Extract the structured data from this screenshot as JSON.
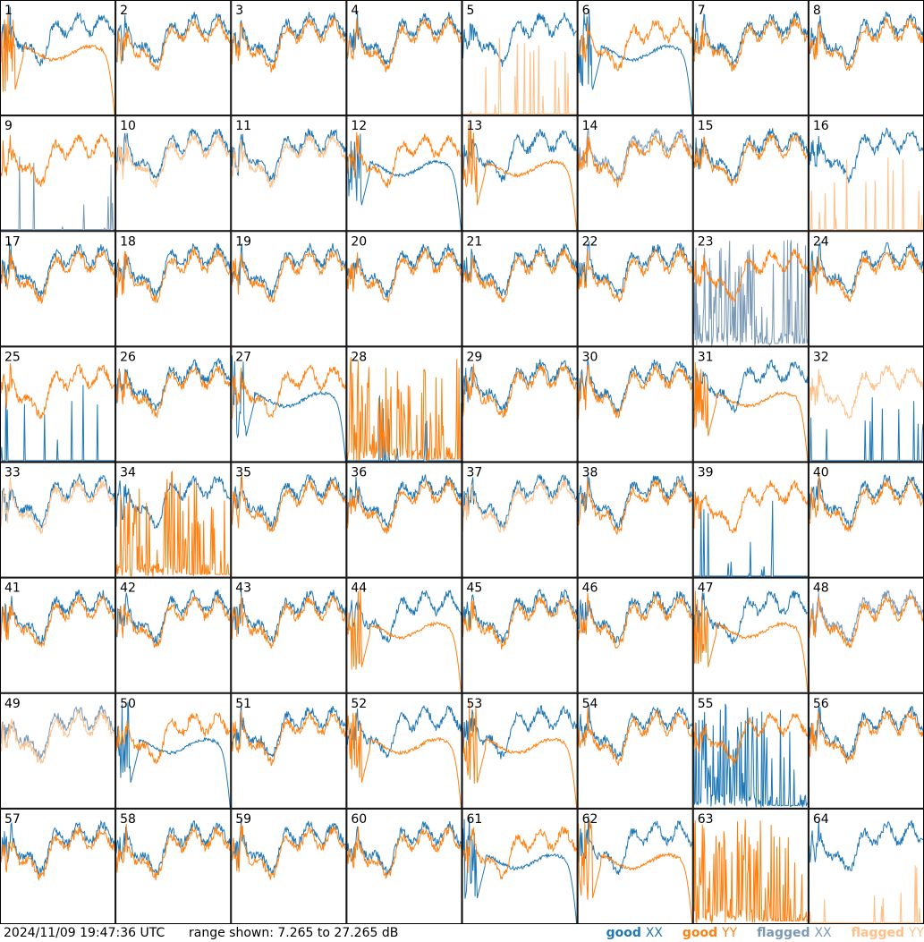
{
  "footer": {
    "timestamp": "2024/11/09 19:47:36 UTC",
    "range_text": "range shown: 7.265 to 27.265 dB"
  },
  "legend": [
    {
      "label": "good",
      "pol": "XX",
      "color": "#1f77b4"
    },
    {
      "label": "good",
      "pol": "YY",
      "color": "#ff7f0e"
    },
    {
      "label": "flagged",
      "pol": "XX",
      "color": "#7a99b6"
    },
    {
      "label": "flagged",
      "pol": "YY",
      "color": "#ffbf86"
    }
  ],
  "chart_data": {
    "type": "line",
    "grid": {
      "rows": 8,
      "cols": 8
    },
    "y_range_db": [
      7.265,
      27.265
    ],
    "colors": {
      "good_xx": "#1f77b4",
      "good_yy": "#ff7f0e",
      "flagged_xx": "#7a99b6",
      "flagged_yy": "#ffbf86"
    },
    "panels": [
      {
        "id": "1",
        "xx": {
          "s": "normal",
          "f": false
        },
        "yy": {
          "s": "rolloff",
          "f": false
        }
      },
      {
        "id": "2",
        "xx": {
          "s": "normal",
          "f": false
        },
        "yy": {
          "s": "normal",
          "f": false
        }
      },
      {
        "id": "3",
        "xx": {
          "s": "normal",
          "f": false
        },
        "yy": {
          "s": "normal",
          "f": false
        }
      },
      {
        "id": "4",
        "xx": {
          "s": "normal",
          "f": false
        },
        "yy": {
          "s": "normal",
          "f": false
        }
      },
      {
        "id": "5",
        "xx": {
          "s": "normal",
          "f": false
        },
        "yy": {
          "s": "spike",
          "f": true
        }
      },
      {
        "id": "6",
        "xx": {
          "s": "rolloff",
          "f": false
        },
        "yy": {
          "s": "normal",
          "f": false
        }
      },
      {
        "id": "7",
        "xx": {
          "s": "normal",
          "f": false
        },
        "yy": {
          "s": "normal",
          "f": false
        }
      },
      {
        "id": "8",
        "xx": {
          "s": "normal",
          "f": false
        },
        "yy": {
          "s": "normal",
          "f": false
        }
      },
      {
        "id": "9",
        "xx": {
          "s": "spike",
          "f": true
        },
        "yy": {
          "s": "normal",
          "f": false
        }
      },
      {
        "id": "10",
        "xx": {
          "s": "normal",
          "f": false
        },
        "yy": {
          "s": "normal",
          "f": true
        }
      },
      {
        "id": "11",
        "xx": {
          "s": "normal",
          "f": false
        },
        "yy": {
          "s": "normal",
          "f": true
        }
      },
      {
        "id": "12",
        "xx": {
          "s": "rolloff",
          "f": false
        },
        "yy": {
          "s": "normal",
          "f": false
        }
      },
      {
        "id": "13",
        "xx": {
          "s": "normal",
          "f": false
        },
        "yy": {
          "s": "rolloff",
          "f": false
        }
      },
      {
        "id": "14",
        "xx": {
          "s": "normal",
          "f": true
        },
        "yy": {
          "s": "normal",
          "f": false
        }
      },
      {
        "id": "15",
        "xx": {
          "s": "normal",
          "f": false
        },
        "yy": {
          "s": "normal",
          "f": false
        }
      },
      {
        "id": "16",
        "xx": {
          "s": "normal",
          "f": false
        },
        "yy": {
          "s": "spike",
          "f": true
        }
      },
      {
        "id": "17",
        "xx": {
          "s": "normal",
          "f": false
        },
        "yy": {
          "s": "normal",
          "f": false
        }
      },
      {
        "id": "18",
        "xx": {
          "s": "normal",
          "f": false
        },
        "yy": {
          "s": "normal",
          "f": false
        }
      },
      {
        "id": "19",
        "xx": {
          "s": "normal",
          "f": false
        },
        "yy": {
          "s": "normal",
          "f": false
        }
      },
      {
        "id": "20",
        "xx": {
          "s": "normal",
          "f": false
        },
        "yy": {
          "s": "normal",
          "f": false
        }
      },
      {
        "id": "21",
        "xx": {
          "s": "normal",
          "f": false
        },
        "yy": {
          "s": "normal",
          "f": false
        }
      },
      {
        "id": "22",
        "xx": {
          "s": "normal",
          "f": false
        },
        "yy": {
          "s": "normal",
          "f": false
        }
      },
      {
        "id": "23",
        "xx": {
          "s": "noise",
          "f": true
        },
        "yy": {
          "s": "normal",
          "f": false
        }
      },
      {
        "id": "24",
        "xx": {
          "s": "normal",
          "f": false
        },
        "yy": {
          "s": "normal",
          "f": false
        }
      },
      {
        "id": "25",
        "xx": {
          "s": "spike",
          "f": false
        },
        "yy": {
          "s": "normal",
          "f": false
        }
      },
      {
        "id": "26",
        "xx": {
          "s": "normal",
          "f": false
        },
        "yy": {
          "s": "normal",
          "f": false
        }
      },
      {
        "id": "27",
        "xx": {
          "s": "rolloff",
          "f": false
        },
        "yy": {
          "s": "normal",
          "f": false
        }
      },
      {
        "id": "28",
        "xx": {
          "s": "spike",
          "f": false
        },
        "yy": {
          "s": "noise",
          "f": false
        }
      },
      {
        "id": "29",
        "xx": {
          "s": "normal",
          "f": false
        },
        "yy": {
          "s": "normal",
          "f": false
        }
      },
      {
        "id": "30",
        "xx": {
          "s": "normal",
          "f": false
        },
        "yy": {
          "s": "normal",
          "f": false
        }
      },
      {
        "id": "31",
        "xx": {
          "s": "normal",
          "f": false
        },
        "yy": {
          "s": "rolloff",
          "f": false
        }
      },
      {
        "id": "32",
        "xx": {
          "s": "spike",
          "f": false
        },
        "yy": {
          "s": "normal",
          "f": true
        }
      },
      {
        "id": "33",
        "xx": {
          "s": "normal",
          "f": false
        },
        "yy": {
          "s": "normal",
          "f": true
        }
      },
      {
        "id": "34",
        "xx": {
          "s": "normal",
          "f": false
        },
        "yy": {
          "s": "noise",
          "f": false
        }
      },
      {
        "id": "35",
        "xx": {
          "s": "normal",
          "f": false
        },
        "yy": {
          "s": "normal",
          "f": false
        }
      },
      {
        "id": "36",
        "xx": {
          "s": "normal",
          "f": false
        },
        "yy": {
          "s": "normal",
          "f": false
        }
      },
      {
        "id": "37",
        "xx": {
          "s": "normal",
          "f": false
        },
        "yy": {
          "s": "normal",
          "f": true
        }
      },
      {
        "id": "38",
        "xx": {
          "s": "normal",
          "f": false
        },
        "yy": {
          "s": "normal",
          "f": false
        }
      },
      {
        "id": "39",
        "xx": {
          "s": "spike",
          "f": false
        },
        "yy": {
          "s": "normal",
          "f": false
        }
      },
      {
        "id": "40",
        "xx": {
          "s": "normal",
          "f": false
        },
        "yy": {
          "s": "normal",
          "f": false
        }
      },
      {
        "id": "41",
        "xx": {
          "s": "normal",
          "f": false
        },
        "yy": {
          "s": "normal",
          "f": false
        }
      },
      {
        "id": "42",
        "xx": {
          "s": "normal",
          "f": false
        },
        "yy": {
          "s": "normal",
          "f": false
        }
      },
      {
        "id": "43",
        "xx": {
          "s": "normal",
          "f": false
        },
        "yy": {
          "s": "normal",
          "f": false
        }
      },
      {
        "id": "44",
        "xx": {
          "s": "normal",
          "f": false
        },
        "yy": {
          "s": "rolloff",
          "f": false
        }
      },
      {
        "id": "45",
        "xx": {
          "s": "normal",
          "f": false
        },
        "yy": {
          "s": "normal",
          "f": false
        }
      },
      {
        "id": "46",
        "xx": {
          "s": "normal",
          "f": false
        },
        "yy": {
          "s": "normal",
          "f": false
        }
      },
      {
        "id": "47",
        "xx": {
          "s": "normal",
          "f": false
        },
        "yy": {
          "s": "rolloff",
          "f": false
        }
      },
      {
        "id": "48",
        "xx": {
          "s": "normal",
          "f": true
        },
        "yy": {
          "s": "normal",
          "f": false
        }
      },
      {
        "id": "49",
        "xx": {
          "s": "normal",
          "f": true
        },
        "yy": {
          "s": "normal",
          "f": true
        }
      },
      {
        "id": "50",
        "xx": {
          "s": "rolloff",
          "f": false
        },
        "yy": {
          "s": "normal",
          "f": false
        }
      },
      {
        "id": "51",
        "xx": {
          "s": "normal",
          "f": false
        },
        "yy": {
          "s": "normal",
          "f": false
        }
      },
      {
        "id": "52",
        "xx": {
          "s": "normal",
          "f": false
        },
        "yy": {
          "s": "rolloff",
          "f": false
        }
      },
      {
        "id": "53",
        "xx": {
          "s": "normal",
          "f": false
        },
        "yy": {
          "s": "rolloff",
          "f": false
        }
      },
      {
        "id": "54",
        "xx": {
          "s": "normal",
          "f": false
        },
        "yy": {
          "s": "normal",
          "f": false
        }
      },
      {
        "id": "55",
        "xx": {
          "s": "noise",
          "f": false
        },
        "yy": {
          "s": "normal",
          "f": false
        }
      },
      {
        "id": "56",
        "xx": {
          "s": "normal",
          "f": false
        },
        "yy": {
          "s": "normal",
          "f": false
        }
      },
      {
        "id": "57",
        "xx": {
          "s": "normal",
          "f": false
        },
        "yy": {
          "s": "normal",
          "f": false
        }
      },
      {
        "id": "58",
        "xx": {
          "s": "normal",
          "f": false
        },
        "yy": {
          "s": "normal",
          "f": false
        }
      },
      {
        "id": "59",
        "xx": {
          "s": "normal",
          "f": false
        },
        "yy": {
          "s": "normal",
          "f": false
        }
      },
      {
        "id": "60",
        "xx": {
          "s": "normal",
          "f": false
        },
        "yy": {
          "s": "normal",
          "f": false
        }
      },
      {
        "id": "61",
        "xx": {
          "s": "rolloff",
          "f": false
        },
        "yy": {
          "s": "normal",
          "f": false
        }
      },
      {
        "id": "62",
        "xx": {
          "s": "normal",
          "f": false
        },
        "yy": {
          "s": "rolloff",
          "f": false
        }
      },
      {
        "id": "63",
        "xx": {
          "s": "none",
          "f": false
        },
        "yy": {
          "s": "noise",
          "f": false
        }
      },
      {
        "id": "64",
        "xx": {
          "s": "normal",
          "f": false
        },
        "yy": {
          "s": "spike",
          "f": true
        }
      }
    ]
  }
}
